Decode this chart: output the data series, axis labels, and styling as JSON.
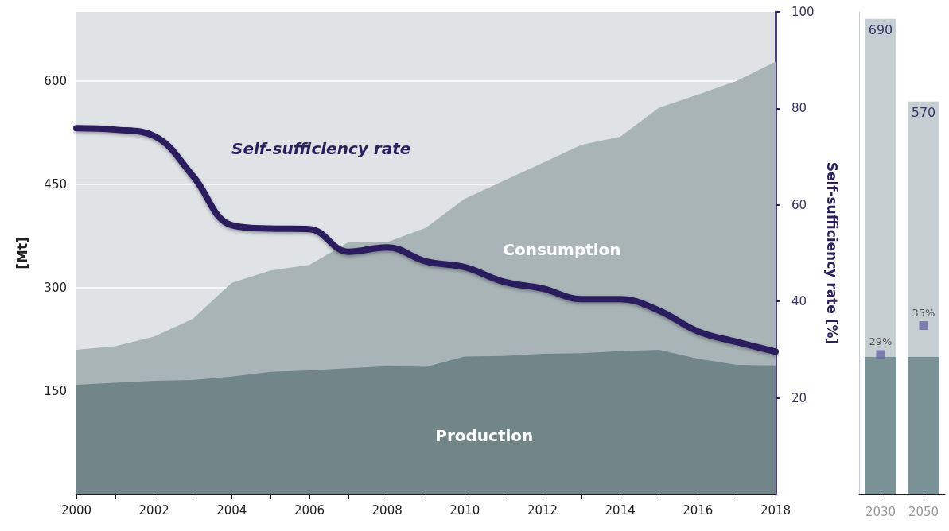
{
  "chart_data": [
    {
      "type": "area",
      "ylabel": "[Mt]",
      "y2label": "Self-sufficiency rate [%]",
      "x": [
        2000,
        2001,
        2002,
        2003,
        2004,
        2005,
        2006,
        2007,
        2008,
        2009,
        2010,
        2011,
        2012,
        2013,
        2014,
        2015,
        2016,
        2017,
        2018
      ],
      "series": [
        {
          "name": "Consumption",
          "color": "#a9b4b7",
          "values": [
            210,
            215,
            229,
            255,
            307,
            325,
            333,
            366,
            366,
            387,
            429,
            455,
            481,
            507,
            519,
            561,
            580,
            600,
            628
          ]
        },
        {
          "name": "Production",
          "color": "#728589",
          "values": [
            159,
            162,
            165,
            166,
            171,
            178,
            180,
            183,
            186,
            185,
            200,
            201,
            204,
            205,
            208,
            210,
            197,
            188,
            187
          ]
        },
        {
          "name": "Self-sufficiency rate",
          "type": "line",
          "axis": "y2",
          "color": "#2b1f5e",
          "values": [
            75.9,
            75.6,
            74.3,
            66,
            55.8,
            55.1,
            55,
            50.3,
            51.2,
            48.3,
            47.1,
            44.1,
            42.7,
            40.5,
            40.5,
            38.1,
            33.8,
            31.6,
            29.6
          ]
        }
      ],
      "xlim": [
        2000,
        2018
      ],
      "xticks": [
        2000,
        {
          "value": 2001,
          "label": null
        },
        2002,
        {
          "value": 2003,
          "label": null
        },
        2004,
        {
          "value": 2005,
          "label": null
        },
        2006,
        {
          "value": 2007,
          "label": null
        },
        2008,
        {
          "value": 2009,
          "label": null
        },
        2010,
        {
          "value": 2011,
          "label": null
        },
        2012,
        {
          "value": 2013,
          "label": null
        },
        2014,
        {
          "value": 2015,
          "label": null
        },
        2016,
        {
          "value": 2017,
          "label": null
        },
        2018
      ],
      "ylim": [
        0,
        700
      ],
      "yticks": [
        150,
        300,
        450,
        600
      ],
      "y2lim": [
        0,
        100
      ],
      "y2ticks": [
        20,
        40,
        60,
        80,
        100
      ],
      "grid": "y"
    },
    {
      "type": "bar",
      "stacked": true,
      "categories": [
        "2030",
        "2050"
      ],
      "series": [
        {
          "color": "#7a9296",
          "values": [
            200,
            200
          ]
        },
        {
          "color": "#c5ced1",
          "values": [
            490,
            370
          ]
        },
        {
          "type": "scatter",
          "axis": "y2",
          "marker": "square",
          "color": "#6b68a6",
          "values": [
            29,
            35
          ],
          "value_labels": [
            "29%",
            "35%"
          ]
        }
      ],
      "totals": [
        "690",
        "570"
      ],
      "ylim": [
        0,
        700
      ],
      "y2lim": [
        0,
        100
      ],
      "tick_labels": "x"
    }
  ]
}
